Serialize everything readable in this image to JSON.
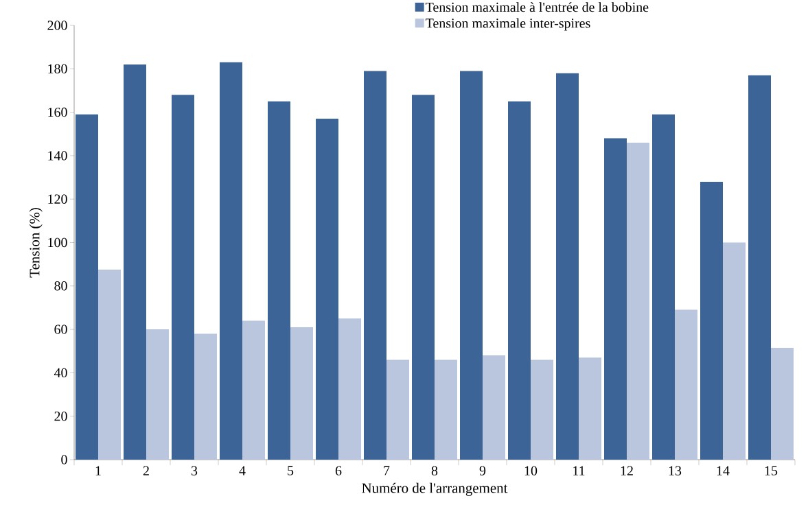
{
  "chart_data": {
    "type": "bar",
    "xlabel": "Numéro de l'arrangement",
    "ylabel": "Tension (%)",
    "categories": [
      "1",
      "2",
      "3",
      "4",
      "5",
      "6",
      "7",
      "8",
      "9",
      "10",
      "11",
      "12",
      "13",
      "14",
      "15"
    ],
    "series": [
      {
        "name": "Tension maximale à l'entrée de la bobine",
        "color": "#3d6496",
        "values": [
          159,
          182,
          168,
          183,
          165,
          157,
          179,
          168,
          179,
          165,
          178,
          148,
          159,
          128,
          177
        ]
      },
      {
        "name": "Tension maximale inter-spires",
        "color": "#b9c6de",
        "values": [
          87.5,
          60,
          58,
          64,
          61,
          65,
          46,
          46,
          48,
          46,
          47,
          146,
          69,
          100,
          51.5
        ]
      }
    ],
    "ylim": [
      0,
      200
    ],
    "yticks": [
      0,
      20,
      40,
      60,
      80,
      100,
      120,
      140,
      160,
      180,
      200
    ],
    "grid": false,
    "legend": "top right"
  }
}
